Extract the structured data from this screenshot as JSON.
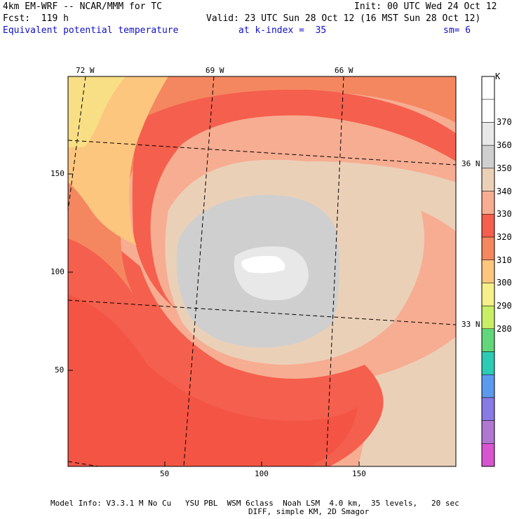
{
  "header": {
    "model": "4km EM-WRF -- NCAR/MMM for TC",
    "init": "Init: 00 UTC Wed 24 Oct 12",
    "fcst": "Fcst:  119 h",
    "valid": "Valid: 23 UTC Sun 28 Oct 12 (16 MST Sun 28 Oct 12)",
    "field": "Equivalent potential temperature",
    "level": "at k-index =  35",
    "smooth": "sm= 6"
  },
  "map": {
    "top_lon_labels": [
      "72 W",
      "69 W",
      "66 W"
    ],
    "right_lat_labels": [
      "36 N",
      "33 N"
    ],
    "y_ticks": [
      "150",
      "100",
      "50"
    ],
    "x_ticks": [
      "50",
      "100",
      "150"
    ]
  },
  "colorbar": {
    "unit": "K",
    "labels": [
      "370",
      "360",
      "350",
      "340",
      "330",
      "320",
      "310",
      "300",
      "290",
      "280"
    ],
    "colors": [
      "#ffffff",
      "#ffffff",
      "#e8e8e8",
      "#cfcfcf",
      "#ebd0b8",
      "#f7ad92",
      "#f55f4d",
      "#f48760",
      "#fcc67e",
      "#f7f08a",
      "#c8ee66",
      "#62d67a",
      "#2ccbb4",
      "#5c9aee",
      "#8a7ae4",
      "#b077d0",
      "#d855d2"
    ]
  },
  "footer": {
    "line1": "Model Info: V3.3.1 M No Cu   YSU PBL  WSM 6class  Noah LSM  4.0 km,  35 levels,   20 sec",
    "line2": "DIFF, simple KM, 2D Smagor"
  }
}
